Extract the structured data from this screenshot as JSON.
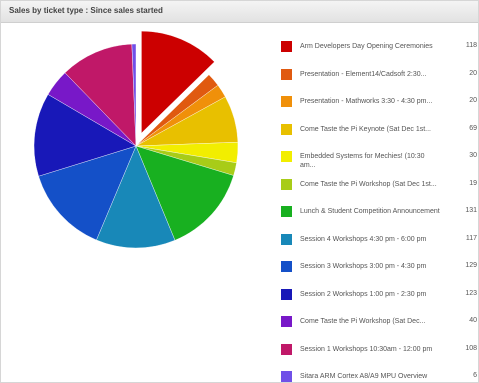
{
  "panel": {
    "title": "Sales by ticket type : Since sales started"
  },
  "chart_data": {
    "type": "pie",
    "title": "Sales by ticket type : Since sales started",
    "exploded_index": 0,
    "slices": [
      {
        "label": "Arm Developers Day Opening Ceremonies",
        "value": 118,
        "color": "#cc0000"
      },
      {
        "label": "Presentation - Element14/Cadsoft 2:30...",
        "value": 20,
        "color": "#e05a10"
      },
      {
        "label": "Presentation - Mathworks 3:30 - 4:30 pm...",
        "value": 20,
        "color": "#f0900a"
      },
      {
        "label": "Come Taste the Pi Keynote (Sat Dec 1st...",
        "value": 69,
        "color": "#e8c000"
      },
      {
        "label": "Embedded Systems for Mechies! (10:30 am...",
        "value": 30,
        "color": "#f2ee00"
      },
      {
        "label": "Come Taste the Pi Workshop (Sat Dec 1st...",
        "value": 19,
        "color": "#a8cc18"
      },
      {
        "label": "Lunch & Student Competition Announcement",
        "value": 131,
        "color": "#18b020"
      },
      {
        "label": "Session 4 Workshops 4:30 pm - 6:00 pm",
        "value": 117,
        "color": "#1888b8"
      },
      {
        "label": "Session 3 Workshops 3:00 pm - 4:30 pm",
        "value": 129,
        "color": "#1450c8"
      },
      {
        "label": "Session 2 Workshops 1:00 pm - 2:30 pm",
        "value": 123,
        "color": "#1818b8"
      },
      {
        "label": "Come Taste the Pi Workshop (Sat Dec...",
        "value": 40,
        "color": "#7818c8"
      },
      {
        "label": "Session 1 Workshops 10:30am - 12:00 pm",
        "value": 108,
        "color": "#c01868"
      },
      {
        "label": "Sitara ARM Cortex A8/A9 MPU Overview",
        "value": 6,
        "color": "#7050e8"
      }
    ]
  }
}
